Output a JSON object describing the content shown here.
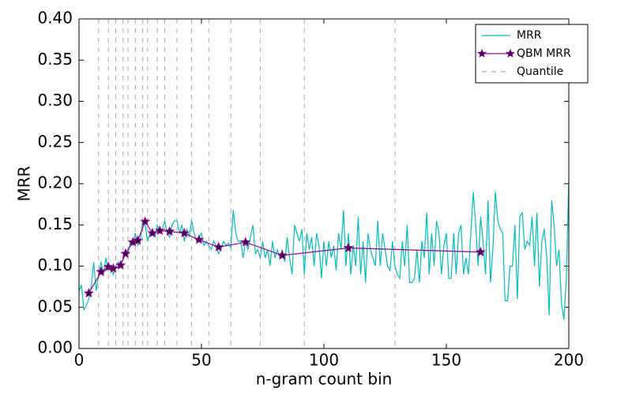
{
  "chart_data": {
    "type": "line",
    "xlabel": "n-gram count bin",
    "ylabel": "MRR",
    "xlim": [
      0,
      200
    ],
    "ylim": [
      0,
      0.4
    ],
    "xticks": [
      0,
      50,
      100,
      150,
      200
    ],
    "yticks": [
      {
        "value": 0,
        "label": "0.00"
      },
      {
        "value": 0.05,
        "label": "0.05"
      },
      {
        "value": 0.1,
        "label": "0.10"
      },
      {
        "value": 0.15,
        "label": "0.15"
      },
      {
        "value": 0.2,
        "label": "0.20"
      },
      {
        "value": 0.25,
        "label": "0.25"
      },
      {
        "value": 0.3,
        "label": "0.30"
      },
      {
        "value": 0.35,
        "label": "0.35"
      },
      {
        "value": 0.4,
        "label": "0.40"
      }
    ],
    "legend": "upper right",
    "series": [
      {
        "name": "MRR",
        "color": "#00bfbf",
        "x": [
          0,
          1,
          2,
          3,
          4,
          5,
          6,
          7,
          8,
          9,
          10,
          11,
          12,
          13,
          14,
          15,
          16,
          17,
          18,
          19,
          20,
          21,
          22,
          23,
          24,
          25,
          26,
          27,
          28,
          29,
          30,
          31,
          32,
          33,
          34,
          35,
          36,
          37,
          38,
          39,
          40,
          41,
          42,
          43,
          44,
          45,
          46,
          47,
          48,
          49,
          50,
          51,
          52,
          53,
          54,
          55,
          56,
          57,
          58,
          59,
          60,
          61,
          62,
          63,
          64,
          65,
          66,
          67,
          68,
          69,
          70,
          71,
          72,
          73,
          74,
          75,
          76,
          77,
          78,
          79,
          80,
          81,
          82,
          83,
          84,
          85,
          86,
          87,
          88,
          89,
          90,
          91,
          92,
          93,
          94,
          95,
          96,
          97,
          98,
          99,
          100,
          101,
          102,
          103,
          104,
          105,
          106,
          107,
          108,
          109,
          110,
          111,
          112,
          113,
          114,
          115,
          116,
          117,
          118,
          119,
          120,
          121,
          122,
          123,
          124,
          125,
          126,
          127,
          128,
          129,
          130,
          131,
          132,
          133,
          134,
          135,
          136,
          137,
          138,
          139,
          140,
          141,
          142,
          143,
          144,
          145,
          146,
          147,
          148,
          149,
          150,
          151,
          152,
          153,
          154,
          155,
          156,
          157,
          158,
          159,
          160,
          161,
          162,
          163,
          164,
          165,
          166,
          167,
          168,
          169,
          170,
          171,
          172,
          173,
          174,
          175,
          176,
          177,
          178,
          179,
          180,
          181,
          182,
          183,
          184,
          185,
          186,
          187,
          188,
          189,
          190,
          191,
          192,
          193,
          194,
          195,
          196,
          197,
          198,
          199,
          200
        ],
        "values": [
          0.07,
          0.077,
          0.047,
          0.052,
          0.06,
          0.075,
          0.105,
          0.07,
          0.09,
          0.105,
          0.09,
          0.11,
          0.095,
          0.1,
          0.09,
          0.1,
          0.105,
          0.1,
          0.11,
          0.12,
          0.115,
          0.13,
          0.125,
          0.14,
          0.125,
          0.13,
          0.155,
          0.15,
          0.13,
          0.14,
          0.145,
          0.135,
          0.15,
          0.14,
          0.145,
          0.155,
          0.14,
          0.135,
          0.15,
          0.155,
          0.155,
          0.14,
          0.15,
          0.13,
          0.145,
          0.135,
          0.155,
          0.14,
          0.13,
          0.135,
          0.14,
          0.125,
          0.13,
          0.125,
          0.12,
          0.13,
          0.125,
          0.115,
          0.12,
          0.13,
          0.125,
          0.128,
          0.122,
          0.168,
          0.14,
          0.13,
          0.13,
          0.11,
          0.13,
          0.12,
          0.135,
          0.15,
          0.115,
          0.12,
          0.11,
          0.13,
          0.11,
          0.12,
          0.1,
          0.13,
          0.11,
          0.12,
          0.11,
          0.12,
          0.105,
          0.135,
          0.11,
          0.09,
          0.15,
          0.14,
          0.13,
          0.145,
          0.09,
          0.14,
          0.12,
          0.135,
          0.1,
          0.14,
          0.125,
          0.085,
          0.13,
          0.1,
          0.13,
          0.11,
          0.125,
          0.095,
          0.14,
          0.12,
          0.168,
          0.1,
          0.14,
          0.09,
          0.125,
          0.1,
          0.16,
          0.09,
          0.13,
          0.08,
          0.14,
          0.12,
          0.11,
          0.1,
          0.155,
          0.1,
          0.14,
          0.12,
          0.1,
          0.095,
          0.13,
          0.1,
          0.09,
          0.085,
          0.13,
          0.1,
          0.15,
          0.08,
          0.08,
          0.085,
          0.12,
          0.08,
          0.13,
          0.11,
          0.165,
          0.09,
          0.14,
          0.1,
          0.155,
          0.14,
          0.09,
          0.125,
          0.14,
          0.085,
          0.085,
          0.14,
          0.09,
          0.14,
          0.15,
          0.09,
          0.11,
          0.09,
          0.14,
          0.19,
          0.15,
          0.1,
          0.16,
          0.13,
          0.09,
          0.18,
          0.08,
          0.12,
          0.19,
          0.155,
          0.145,
          0.14,
          0.058,
          0.058,
          0.1,
          0.1,
          0.15,
          0.06,
          0.16,
          0.165,
          0.12,
          0.13,
          0.125,
          0.16,
          0.1,
          0.165,
          0.075,
          0.13,
          0.145,
          0.11,
          0.04,
          0.18,
          0.15,
          0.1,
          0.12,
          0.055,
          0.035,
          0.085,
          0.205
        ]
      },
      {
        "name": "QBM MRR",
        "color": "#990099",
        "marker": "star",
        "x": [
          4,
          9,
          12,
          14,
          17,
          19,
          22,
          24,
          27,
          30,
          33,
          37,
          43,
          49,
          57,
          68,
          83,
          110,
          164
        ],
        "values": [
          0.067,
          0.093,
          0.099,
          0.097,
          0.101,
          0.115,
          0.129,
          0.131,
          0.154,
          0.14,
          0.143,
          0.142,
          0.14,
          0.132,
          0.123,
          0.129,
          0.113,
          0.122,
          0.117
        ]
      }
    ],
    "quantile": {
      "name": "Quantile",
      "color": "#aaaaaa",
      "x": [
        8,
        12,
        15,
        18,
        20,
        23,
        26,
        28,
        32,
        35,
        40,
        46,
        53,
        62,
        74,
        92,
        129
      ]
    }
  }
}
